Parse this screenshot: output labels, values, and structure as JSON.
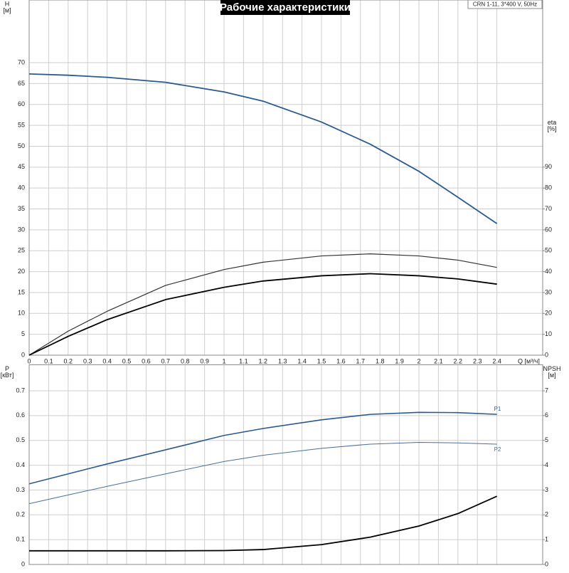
{
  "chart_data": [
    {
      "type": "line",
      "title": "Рабочие характеристики",
      "annotation": "CRN 1-11, 3*400 V, 50Hz",
      "ylabel": [
        "H",
        "[м]"
      ],
      "y2label": [
        "eta",
        "[%]"
      ],
      "xlabel": "Q [м³/ч]",
      "x": [
        0,
        0.2,
        0.4,
        0.7,
        1.0,
        1.2,
        1.5,
        1.75,
        2.0,
        2.2,
        2.4
      ],
      "xlim": [
        0,
        2.635
      ],
      "xticks": [
        0,
        0.1,
        0.2,
        0.3,
        0.4,
        0.5,
        0.6,
        0.7,
        0.8,
        0.9,
        1.0,
        1.1,
        1.2,
        1.3,
        1.4,
        1.5,
        1.6,
        1.7,
        1.8,
        1.9,
        2.0,
        2.1,
        2.2,
        2.3,
        2.4
      ],
      "ylim": [
        0,
        85
      ],
      "yticks": [
        0,
        5,
        10,
        15,
        20,
        25,
        30,
        35,
        40,
        45,
        50,
        55,
        60,
        65,
        70
      ],
      "y2lim": [
        0,
        170
      ],
      "y2ticks": [
        0,
        10,
        20,
        30,
        40,
        50,
        60,
        70,
        80,
        90
      ],
      "grid": true,
      "series": [
        {
          "color": "#2b5b8e",
          "width": 1.8,
          "values": [
            67.3,
            67.0,
            66.5,
            65.3,
            63.0,
            60.8,
            55.8,
            50.5,
            44,
            37.8,
            31.5
          ]
        },
        {
          "color": "#333333",
          "width": 1.2,
          "axis": "y2",
          "values": [
            0,
            11.5,
            21,
            33.4,
            41,
            44.5,
            47.5,
            48.5,
            47.5,
            45.5,
            42
          ]
        },
        {
          "color": "#000000",
          "width": 1.8,
          "axis": "y2",
          "values": [
            0,
            9,
            17,
            26.6,
            32.5,
            35.5,
            38,
            39,
            38,
            36.5,
            34
          ]
        }
      ]
    },
    {
      "type": "line",
      "ylabel": [
        "P",
        "[кВт]"
      ],
      "y2label": [
        "NPSH",
        "[м]"
      ],
      "x": [
        0,
        0.2,
        0.4,
        0.7,
        1.0,
        1.2,
        1.5,
        1.75,
        2.0,
        2.2,
        2.4
      ],
      "xlim": [
        0,
        2.635
      ],
      "ylim": [
        0,
        0.805
      ],
      "yticks": [
        0,
        0.1,
        0.2,
        0.3,
        0.4,
        0.5,
        0.6,
        0.7
      ],
      "y2lim": [
        0,
        8.05
      ],
      "y2ticks": [
        0,
        1,
        2,
        3,
        4,
        5,
        6,
        7
      ],
      "grid": true,
      "series": [
        {
          "name": "P1",
          "color": "#2b5b8e",
          "width": 1.6,
          "values": [
            0.325,
            0.365,
            0.405,
            0.462,
            0.52,
            0.548,
            0.583,
            0.605,
            0.613,
            0.612,
            0.605
          ]
        },
        {
          "name": "P2",
          "color": "#4a6e9a",
          "width": 1.0,
          "values": [
            0.245,
            0.28,
            0.315,
            0.365,
            0.415,
            0.44,
            0.468,
            0.485,
            0.492,
            0.49,
            0.485
          ]
        },
        {
          "color": "#000000",
          "width": 1.8,
          "axis": "y2",
          "values": [
            0.55,
            0.55,
            0.55,
            0.55,
            0.56,
            0.6,
            0.8,
            1.1,
            1.55,
            2.05,
            2.75
          ]
        }
      ]
    }
  ]
}
